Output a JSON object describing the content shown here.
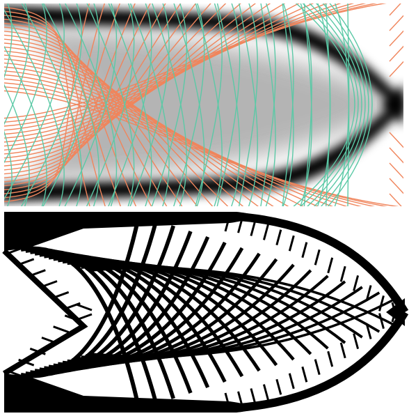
{
  "figure": {
    "panels": [
      {
        "id": "density-with-principal-stress-lines",
        "description_shown": "none",
        "colors": {
          "background": "#ffffff",
          "density_dark": "#000000",
          "density_mid": "#a8a8a8",
          "principal_direction_1": "#f0855c",
          "principal_direction_2": "#5bc9a6"
        }
      },
      {
        "id": "lattice-structure",
        "colors": {
          "background": "#ffffff",
          "material": "#000000"
        }
      }
    ]
  }
}
